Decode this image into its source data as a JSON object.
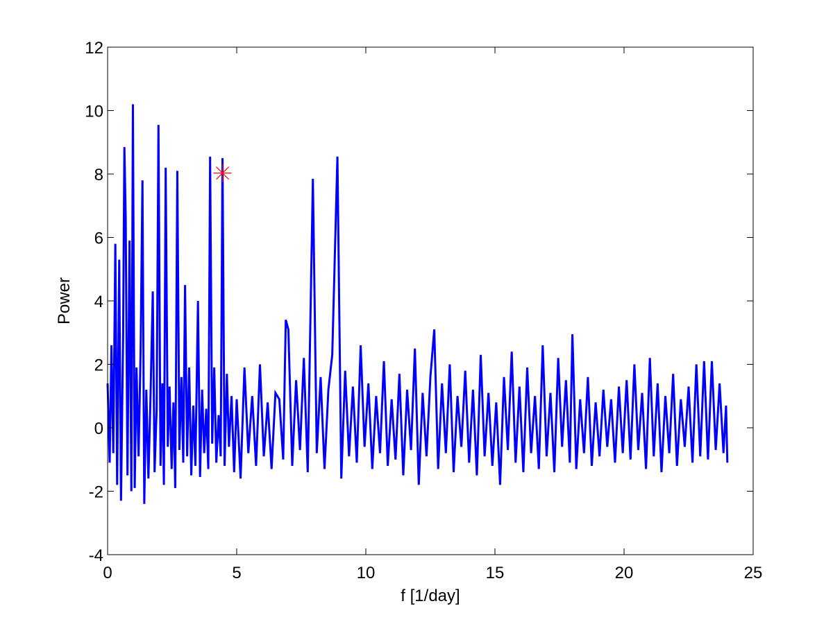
{
  "chart_data": {
    "type": "line",
    "xlabel": "f [1/day]",
    "ylabel": "Power",
    "xlim": [
      0,
      25
    ],
    "xticks": [
      0,
      5,
      10,
      15,
      20,
      25
    ],
    "ylim": [
      -4,
      12
    ],
    "yticks": [
      -4,
      -2,
      0,
      2,
      4,
      6,
      8,
      10,
      12
    ],
    "grid": false,
    "x": [
      0,
      0.08,
      0.15,
      0.22,
      0.3,
      0.37,
      0.45,
      0.52,
      0.6,
      0.65,
      0.7,
      0.77,
      0.85,
      0.92,
      0.98,
      1.05,
      1.12,
      1.2,
      1.28,
      1.35,
      1.42,
      1.5,
      1.58,
      1.66,
      1.75,
      1.82,
      1.9,
      1.97,
      2.05,
      2.12,
      2.18,
      2.25,
      2.33,
      2.4,
      2.48,
      2.55,
      2.62,
      2.7,
      2.78,
      2.86,
      2.93,
      3.0,
      3.08,
      3.16,
      3.24,
      3.32,
      3.4,
      3.5,
      3.58,
      3.66,
      3.74,
      3.82,
      3.9,
      3.97,
      4.05,
      4.13,
      4.21,
      4.3,
      4.38,
      4.45,
      4.53,
      4.62,
      4.7,
      4.8,
      4.9,
      5.0,
      5.15,
      5.3,
      5.45,
      5.6,
      5.75,
      5.9,
      6.05,
      6.2,
      6.35,
      6.5,
      6.65,
      6.8,
      6.9,
      7.0,
      7.15,
      7.3,
      7.45,
      7.6,
      7.75,
      7.95,
      8.1,
      8.25,
      8.4,
      8.55,
      8.7,
      8.9,
      9.05,
      9.2,
      9.35,
      9.5,
      9.65,
      9.8,
      9.95,
      10.1,
      10.25,
      10.4,
      10.55,
      10.7,
      10.85,
      11.0,
      11.15,
      11.3,
      11.45,
      11.6,
      11.75,
      11.9,
      12.05,
      12.2,
      12.35,
      12.5,
      12.65,
      12.8,
      12.95,
      13.1,
      13.25,
      13.4,
      13.55,
      13.7,
      13.85,
      14.0,
      14.15,
      14.3,
      14.45,
      14.6,
      14.75,
      14.9,
      15.05,
      15.2,
      15.35,
      15.5,
      15.65,
      15.8,
      15.95,
      16.1,
      16.25,
      16.4,
      16.55,
      16.7,
      16.85,
      17.0,
      17.15,
      17.3,
      17.45,
      17.6,
      17.75,
      17.9,
      18.0,
      18.15,
      18.3,
      18.45,
      18.6,
      18.75,
      18.9,
      19.05,
      19.2,
      19.35,
      19.5,
      19.65,
      19.8,
      19.95,
      20.1,
      20.25,
      20.4,
      20.55,
      20.7,
      20.85,
      21.0,
      21.15,
      21.3,
      21.45,
      21.6,
      21.75,
      21.9,
      22.05,
      22.2,
      22.35,
      22.5,
      22.65,
      22.8,
      22.95,
      23.1,
      23.25,
      23.4,
      23.55,
      23.7,
      23.85,
      23.95,
      24.0
    ],
    "series": [
      {
        "color": "#0000ff",
        "values": [
          1.4,
          -1.1,
          2.6,
          -0.8,
          5.8,
          -1.8,
          5.3,
          -2.3,
          2.8,
          8.85,
          6.7,
          -1.5,
          5.9,
          -2.0,
          10.2,
          -1.9,
          1.9,
          -0.9,
          2.5,
          7.8,
          -2.4,
          1.2,
          -1.6,
          0.9,
          4.3,
          -1.4,
          0.6,
          9.55,
          -1.2,
          1.4,
          -1.8,
          8.2,
          -0.6,
          1.3,
          -1.3,
          0.8,
          -1.9,
          8.1,
          -0.7,
          1.6,
          -1.1,
          4.5,
          -0.9,
          1.9,
          -1.5,
          0.7,
          -1.2,
          4.0,
          -1.55,
          1.2,
          -0.8,
          0.6,
          -1.3,
          8.55,
          -0.5,
          1.9,
          -1.1,
          0.4,
          -0.9,
          8.5,
          -1.2,
          1.7,
          -0.6,
          1.0,
          -1.4,
          0.9,
          -1.6,
          1.9,
          -0.8,
          1.0,
          -1.2,
          2.0,
          -0.9,
          0.8,
          -1.3,
          1.1,
          0.9,
          -1.0,
          3.4,
          3.1,
          -1.2,
          1.5,
          -0.7,
          2.2,
          -1.4,
          7.85,
          -0.8,
          1.6,
          -1.3,
          1.2,
          2.3,
          8.55,
          -1.6,
          1.8,
          -0.9,
          1.3,
          -1.1,
          2.6,
          -0.6,
          1.4,
          -1.3,
          1.0,
          -0.8,
          2.1,
          -1.2,
          0.9,
          -1.0,
          1.7,
          -1.5,
          1.2,
          -0.7,
          2.5,
          -1.8,
          1.1,
          -0.9,
          1.6,
          3.1,
          -1.3,
          1.4,
          -0.8,
          2.0,
          -1.4,
          1.0,
          -0.6,
          1.8,
          -1.1,
          1.2,
          -1.5,
          2.3,
          -0.9,
          1.1,
          -1.2,
          0.8,
          -1.8,
          1.6,
          -0.7,
          2.4,
          -1.1,
          1.3,
          -1.4,
          1.9,
          -0.8,
          1.0,
          -1.3,
          2.6,
          -0.9,
          1.1,
          -1.4,
          2.2,
          -0.6,
          1.5,
          -1.1,
          2.95,
          -1.3,
          0.9,
          -0.8,
          1.6,
          -1.2,
          0.8,
          -0.9,
          1.2,
          -0.6,
          0.9,
          -1.1,
          1.3,
          -0.8,
          1.5,
          -1.0,
          2.0,
          -0.7,
          1.1,
          -1.3,
          2.2,
          -0.9,
          1.4,
          -1.4,
          1.0,
          -0.8,
          1.7,
          -1.2,
          0.9,
          -0.6,
          1.3,
          -1.1,
          2.0,
          -0.9,
          2.1,
          -1.0,
          2.1,
          -0.7,
          1.4,
          -0.8,
          0.7,
          -1.1
        ]
      }
    ],
    "highlight": {
      "x": 4.45,
      "y": 8.03,
      "color": "#ff0000"
    }
  }
}
